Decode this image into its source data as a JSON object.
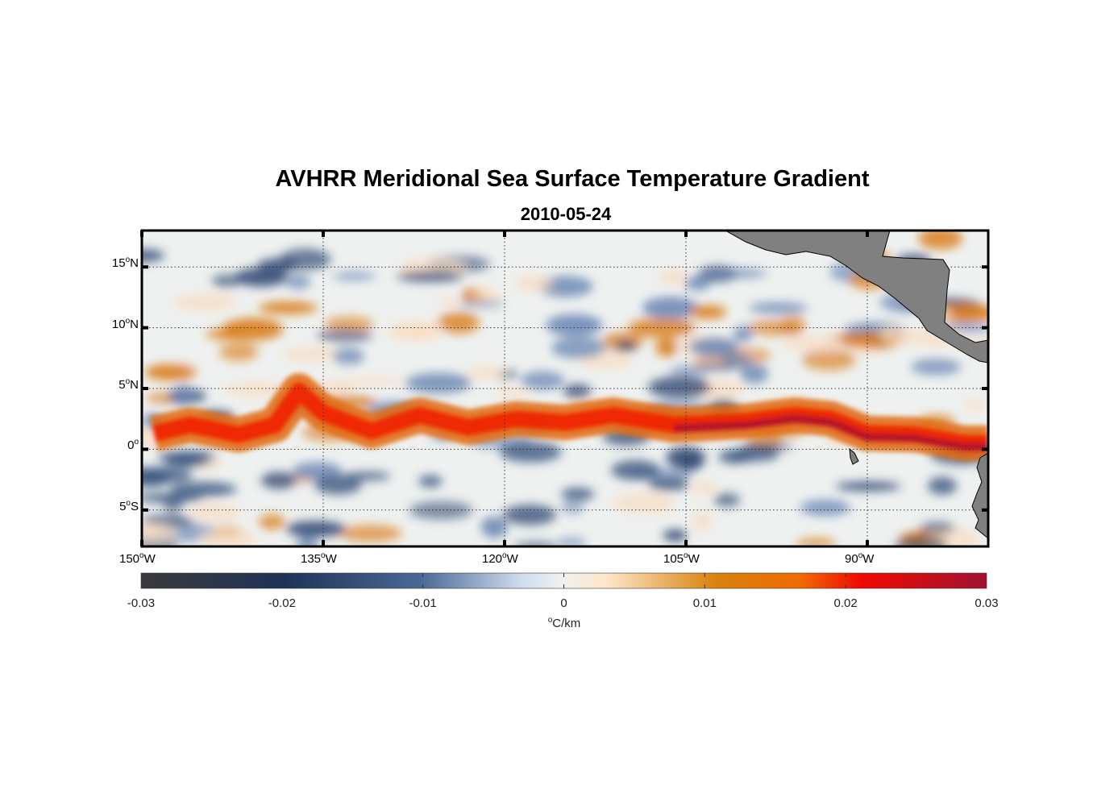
{
  "title": "AVHRR Meridional Sea Surface Temperature Gradient",
  "subtitle": "2010-05-24",
  "map": {
    "lon_range": [
      -150,
      -80
    ],
    "lat_range": [
      -8,
      18
    ],
    "lon_ticks": [
      {
        "value": -150,
        "deg": "150",
        "hemi": "W"
      },
      {
        "value": -135,
        "deg": "135",
        "hemi": "W"
      },
      {
        "value": -120,
        "deg": "120",
        "hemi": "W"
      },
      {
        "value": -105,
        "deg": "105",
        "hemi": "W"
      },
      {
        "value": -90,
        "deg": "90",
        "hemi": "W"
      }
    ],
    "lat_ticks": [
      {
        "value": 15,
        "deg": "15",
        "hemi": "N"
      },
      {
        "value": 10,
        "deg": "10",
        "hemi": "N"
      },
      {
        "value": 5,
        "deg": "5",
        "hemi": "N"
      },
      {
        "value": 0,
        "deg": "0",
        "hemi": ""
      },
      {
        "value": -5,
        "deg": "5",
        "hemi": "S"
      }
    ],
    "land_color": "#808080"
  },
  "colorbar": {
    "ticks": [
      "-0.03",
      "-0.02",
      "-0.01",
      "0",
      "0.01",
      "0.02",
      "0.03"
    ],
    "range": [
      -0.03,
      0.03
    ],
    "units_sup": "o",
    "units": "C/km",
    "colors": [
      "#3a3a3c",
      "#1f3358",
      "#4b6895",
      "#cfdcef",
      "#f1f1ee",
      "#fde6c8",
      "#d9820c",
      "#f06a00",
      "#f00a00",
      "#a01232"
    ]
  }
}
